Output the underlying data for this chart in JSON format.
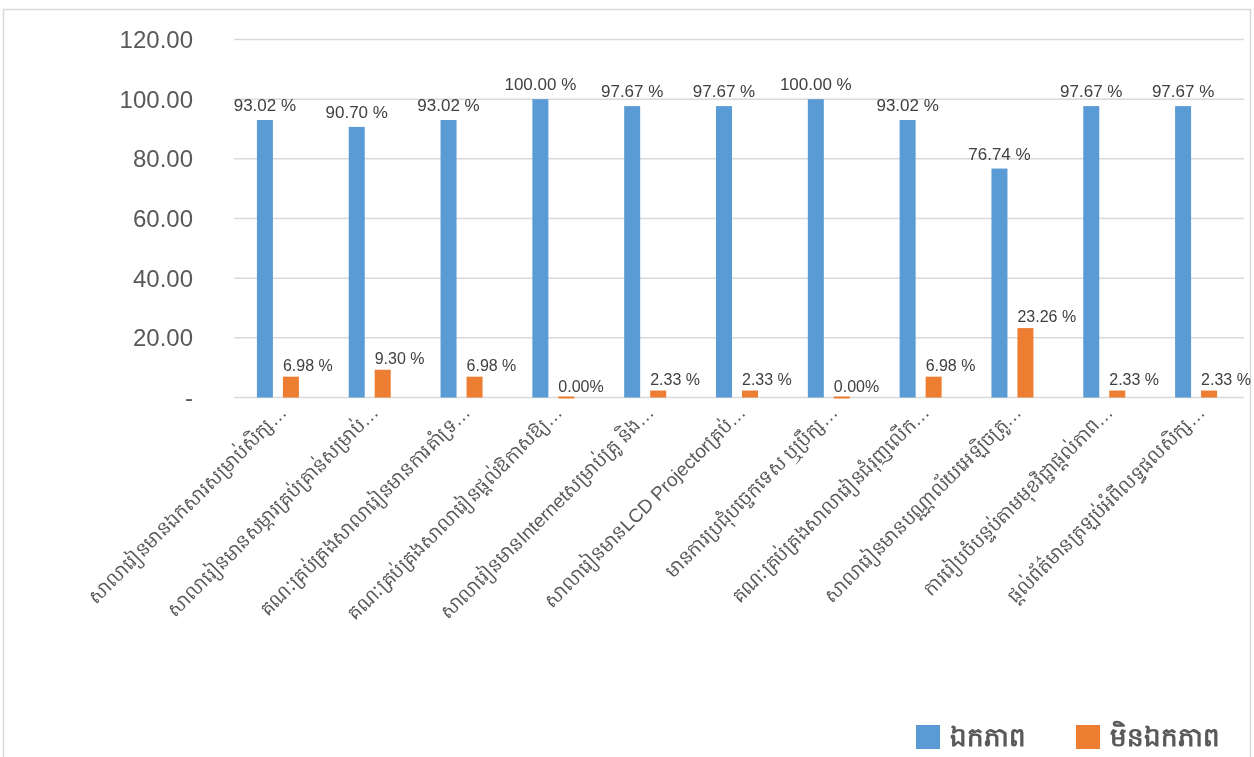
{
  "chart_data": {
    "type": "bar",
    "categories": [
      "សាលារៀនមានឯកសារសម្រាប់សិក្ស…",
      "សាលារៀនមានសម្ភារគ្រប់គ្រាន់សម្រាប់…",
      "គណៈគ្រប់គ្រងសាលារៀនមានការគាំទ្រ…",
      "គណៈគ្រប់គ្រងសាលារៀនផ្តល់ឱកាសឱ្យ…",
      "សាលារៀនមានInternetសម្រាប់គ្រូ និង…",
      "សាលារៀនមានLCD Projectorគ្រប់…",
      "មានការប្រជុំបច្ចេកទេស ឬប្រឹក្ស…",
      "គណៈគ្រប់គ្រងសាលារៀនជំរុញលើក…",
      "សាលារៀនមានបណ្ណាល័យអេឡិចត្រូ…",
      "ការរៀបចំបន្ទប់តាមមុខវិជ្ជាផ្តល់ភាព…",
      "ផ្តល់ព័ត៌មានត្រឡប់អំពីលទ្ធផលសិក្ស…"
    ],
    "series": [
      {
        "name": "ឯកភាព",
        "color": "#5b9bd5",
        "values": [
          93.02,
          90.7,
          93.02,
          100.0,
          97.67,
          97.67,
          100.0,
          93.02,
          76.74,
          97.67,
          97.67
        ],
        "value_labels": [
          "93.02 %",
          "90.70 %",
          "93.02 %",
          "100.00 %",
          "97.67 %",
          "97.67 %",
          "100.00 %",
          "93.02 %",
          "76.74 %",
          "97.67 %",
          "97.67 %"
        ]
      },
      {
        "name": "មិនឯកភាព",
        "color": "#ed7d31",
        "values": [
          6.98,
          9.3,
          6.98,
          0.0,
          2.33,
          2.33,
          0.0,
          6.98,
          23.26,
          2.33,
          2.33
        ],
        "value_labels": [
          "6.98 %",
          "9.30 %",
          "6.98 %",
          "0.00%",
          "2.33 %",
          "2.33 %",
          "0.00%",
          "6.98 %",
          "23.26 %",
          "2.33 %",
          "2.33 %"
        ]
      }
    ],
    "ylim": [
      0,
      120
    ],
    "yticks": [
      {
        "value": 0,
        "label": "-"
      },
      {
        "value": 20,
        "label": "20.00"
      },
      {
        "value": 40,
        "label": "40.00"
      },
      {
        "value": 60,
        "label": "60.00"
      },
      {
        "value": 80,
        "label": "80.00"
      },
      {
        "value": 100,
        "label": "100.00"
      },
      {
        "value": 120,
        "label": "120.00"
      }
    ],
    "grid": "y",
    "legend": "bottom right"
  }
}
